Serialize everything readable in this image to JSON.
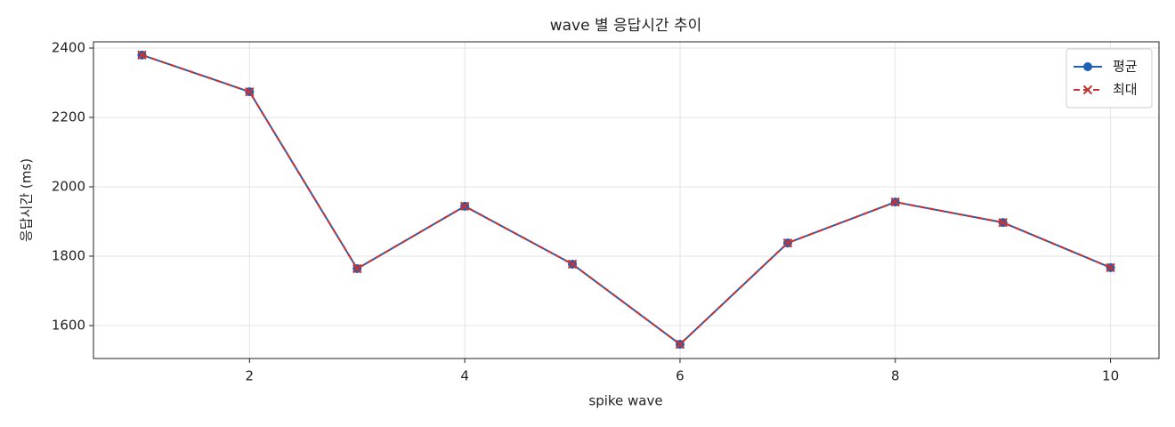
{
  "chart_data": {
    "type": "line",
    "title": "wave 별 응답시간 추이",
    "x_label": "spike wave",
    "y_label": "응답시간 (ms)",
    "x": [
      1,
      2,
      3,
      4,
      5,
      6,
      7,
      8,
      9,
      10
    ],
    "series": [
      {
        "name": "평균",
        "color": "#1f5fb4",
        "marker": "o",
        "linestyle": "solid",
        "values": [
          2380,
          2274,
          1764,
          1944,
          1777,
          1546,
          1838,
          1956,
          1897,
          1767
        ]
      },
      {
        "name": "최대",
        "color": "#c83232",
        "marker": "x",
        "linestyle": "dashed",
        "values": [
          2380,
          2274,
          1764,
          1944,
          1777,
          1546,
          1838,
          1956,
          1897,
          1767
        ]
      }
    ],
    "xlim": [
      0.55,
      10.45
    ],
    "xticks": [
      2,
      4,
      6,
      8,
      10
    ],
    "ylim": [
      1505,
      2418
    ],
    "yticks": [
      1600,
      1800,
      2000,
      2200,
      2400
    ],
    "grid": true,
    "legend": "upper right"
  }
}
